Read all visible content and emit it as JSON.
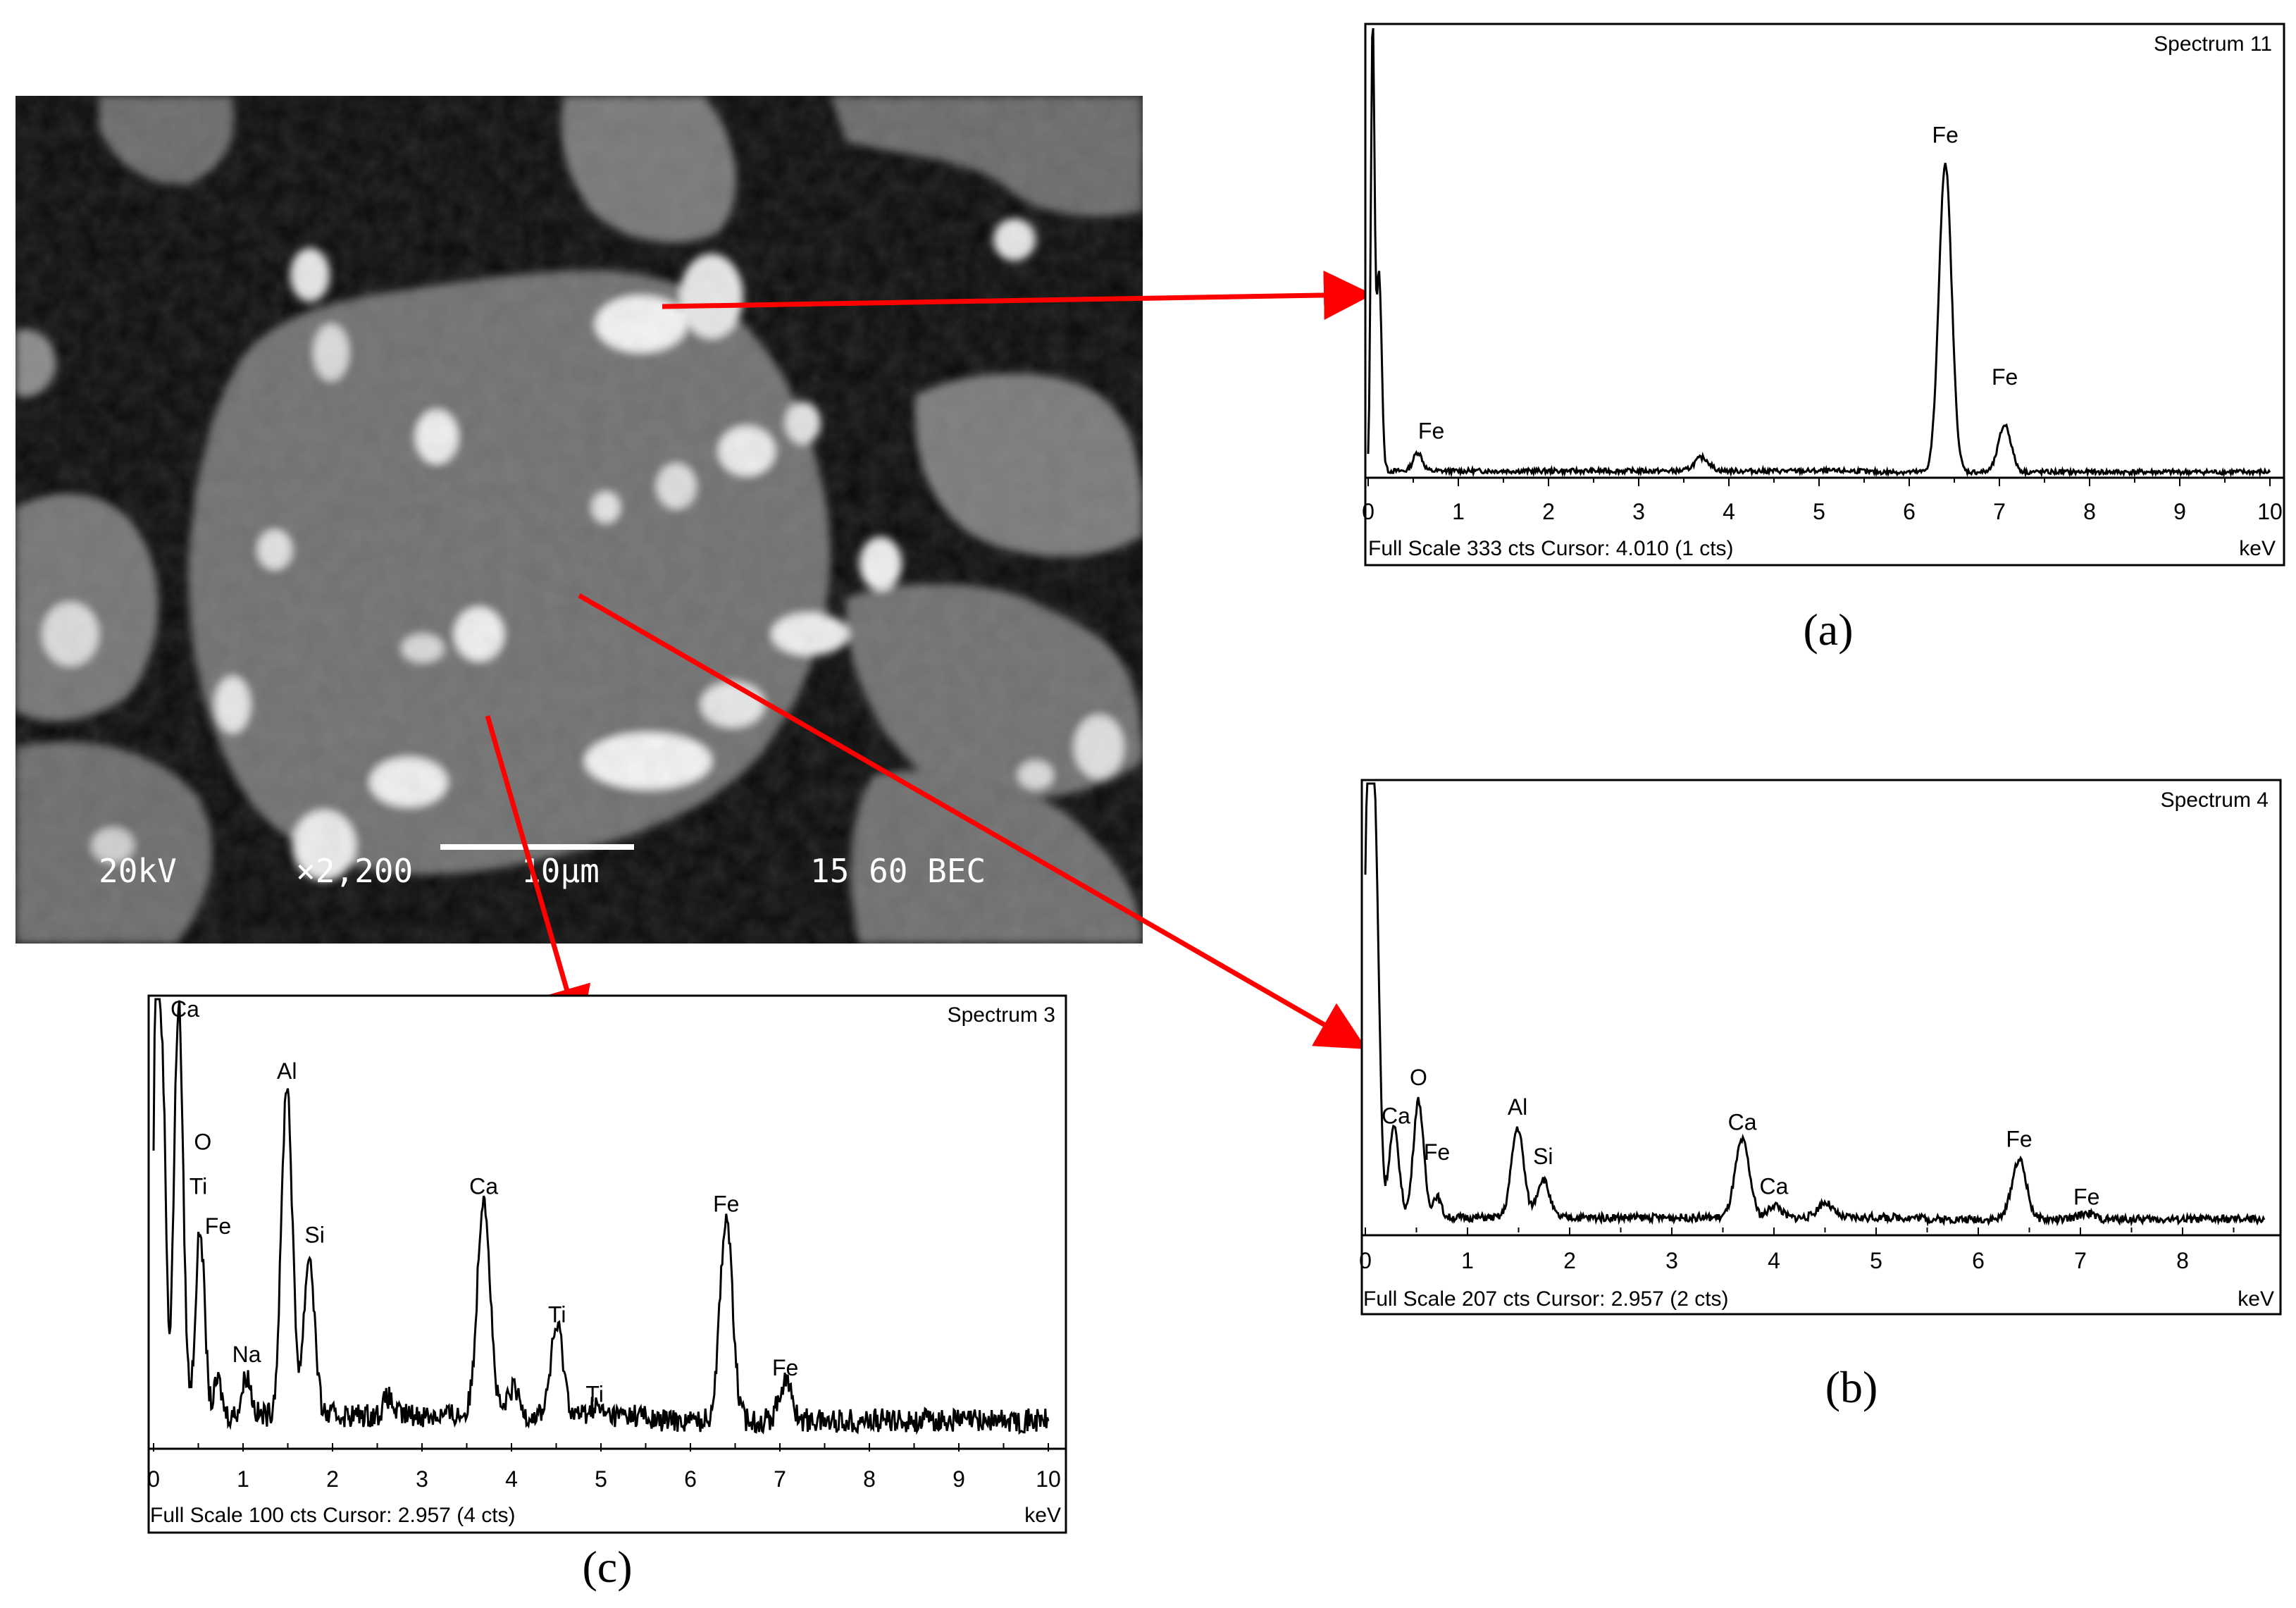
{
  "sem_image": {
    "scale_bar_labels": [
      "20kV",
      "×2,200",
      "10µm",
      "15 60 BEC"
    ]
  },
  "panel_labels": [
    "(a)",
    "(b)",
    "(c)"
  ],
  "chart_data": [
    {
      "type": "line",
      "panel": "(a)",
      "title": "Spectrum 11",
      "footer": "Full Scale 333 cts Cursor: 4.010  (1 cts)",
      "unit_label": "keV",
      "xlim": [
        0,
        10
      ],
      "x_ticks": [
        "0",
        "1",
        "2",
        "3",
        "4",
        "5",
        "6",
        "7",
        "8",
        "9",
        "10"
      ],
      "ylim": [
        0,
        333
      ],
      "baseline": 4,
      "peaks": [
        {
          "x": 0.05,
          "y": 333,
          "w": 0.02
        },
        {
          "x": 0.12,
          "y": 150,
          "w": 0.03
        },
        {
          "x": 0.55,
          "y": 14,
          "w": 0.05
        },
        {
          "x": 3.7,
          "y": 10,
          "w": 0.08
        },
        {
          "x": 6.4,
          "y": 230,
          "w": 0.07
        },
        {
          "x": 7.06,
          "y": 35,
          "w": 0.07
        }
      ],
      "annotations": [
        {
          "label": "Fe",
          "x": 0.7,
          "y": 28
        },
        {
          "label": "Fe",
          "x": 6.4,
          "y": 248
        },
        {
          "label": "Fe",
          "x": 7.06,
          "y": 68
        }
      ]
    },
    {
      "type": "line",
      "panel": "(b)",
      "title": "Spectrum 4",
      "footer": "Full Scale 207 cts Cursor: 2.957  (2 cts)",
      "unit_label": "keV",
      "xlim": [
        0,
        8.8
      ],
      "x_ticks": [
        "0",
        "1",
        "2",
        "3",
        "4",
        "5",
        "6",
        "7",
        "8"
      ],
      "ylim": [
        0,
        207
      ],
      "baseline": 4,
      "peaks": [
        {
          "x": 0.03,
          "y": 207,
          "w": 0.04
        },
        {
          "x": 0.1,
          "y": 150,
          "w": 0.04
        },
        {
          "x": 0.28,
          "y": 42,
          "w": 0.05
        },
        {
          "x": 0.52,
          "y": 55,
          "w": 0.05
        },
        {
          "x": 0.7,
          "y": 10,
          "w": 0.04
        },
        {
          "x": 1.49,
          "y": 42,
          "w": 0.06
        },
        {
          "x": 1.74,
          "y": 18,
          "w": 0.06
        },
        {
          "x": 3.69,
          "y": 36,
          "w": 0.07
        },
        {
          "x": 4.01,
          "y": 6,
          "w": 0.06
        },
        {
          "x": 4.5,
          "y": 7,
          "w": 0.07
        },
        {
          "x": 6.4,
          "y": 28,
          "w": 0.07
        },
        {
          "x": 7.06,
          "y": 3,
          "w": 0.07
        }
      ],
      "annotations": [
        {
          "label": "Ca",
          "x": 0.3,
          "y": 48
        },
        {
          "label": "O",
          "x": 0.52,
          "y": 66
        },
        {
          "label": "Fe",
          "x": 0.7,
          "y": 31
        },
        {
          "label": "Al",
          "x": 1.49,
          "y": 52
        },
        {
          "label": "Si",
          "x": 1.74,
          "y": 29
        },
        {
          "label": "Ca",
          "x": 3.69,
          "y": 45
        },
        {
          "label": "Ca",
          "x": 4.0,
          "y": 15
        },
        {
          "label": "Fe",
          "x": 6.4,
          "y": 37
        },
        {
          "label": "Fe",
          "x": 7.06,
          "y": 10
        }
      ]
    },
    {
      "type": "line",
      "panel": "(c)",
      "title": "Spectrum 3",
      "footer": "Full Scale 100 cts Cursor: 2.957  (4 cts)",
      "unit_label": "keV",
      "xlim": [
        0,
        10
      ],
      "x_ticks": [
        "0",
        "1",
        "2",
        "3",
        "4",
        "5",
        "6",
        "7",
        "8",
        "9",
        "10"
      ],
      "ylim": [
        0,
        100
      ],
      "baseline": 6,
      "peaks": [
        {
          "x": 0.03,
          "y": 100,
          "w": 0.03
        },
        {
          "x": 0.1,
          "y": 80,
          "w": 0.04
        },
        {
          "x": 0.28,
          "y": 93,
          "w": 0.05
        },
        {
          "x": 0.52,
          "y": 42,
          "w": 0.05
        },
        {
          "x": 0.72,
          "y": 8,
          "w": 0.04
        },
        {
          "x": 1.04,
          "y": 9,
          "w": 0.05
        },
        {
          "x": 1.49,
          "y": 75,
          "w": 0.06
        },
        {
          "x": 1.74,
          "y": 36,
          "w": 0.06
        },
        {
          "x": 2.62,
          "y": 4,
          "w": 0.05
        },
        {
          "x": 3.69,
          "y": 50,
          "w": 0.07
        },
        {
          "x": 4.02,
          "y": 6,
          "w": 0.06
        },
        {
          "x": 4.51,
          "y": 20,
          "w": 0.07
        },
        {
          "x": 4.93,
          "y": 2,
          "w": 0.06
        },
        {
          "x": 6.4,
          "y": 46,
          "w": 0.07
        },
        {
          "x": 7.06,
          "y": 9,
          "w": 0.07
        }
      ],
      "annotations": [
        {
          "label": "Ca",
          "x": 0.35,
          "y": 96
        },
        {
          "label": "O",
          "x": 0.55,
          "y": 66
        },
        {
          "label": "Ti",
          "x": 0.5,
          "y": 56
        },
        {
          "label": "Fe",
          "x": 0.72,
          "y": 47
        },
        {
          "label": "Na",
          "x": 1.04,
          "y": 18
        },
        {
          "label": "Al",
          "x": 1.49,
          "y": 82
        },
        {
          "label": "Si",
          "x": 1.8,
          "y": 45
        },
        {
          "label": "Ca",
          "x": 3.69,
          "y": 56
        },
        {
          "label": "Ti",
          "x": 4.51,
          "y": 27
        },
        {
          "label": "Ti",
          "x": 4.93,
          "y": 9
        },
        {
          "label": "Fe",
          "x": 6.4,
          "y": 52
        },
        {
          "label": "Fe",
          "x": 7.06,
          "y": 15
        }
      ]
    }
  ],
  "colors": {
    "arrow": "#ff0000",
    "spectrum_line": "#000000",
    "frame": "#000000",
    "sem_background": "#0b0b0b"
  }
}
